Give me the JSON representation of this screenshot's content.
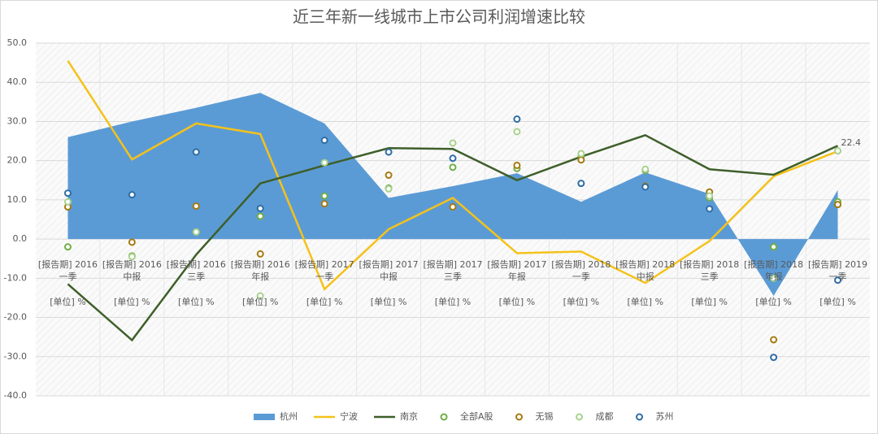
{
  "chart_data": {
    "type": "combo",
    "title": "近三年新一线城市上市公司利润增速比较",
    "categories": [
      [
        "[报告期] 2016",
        "一季"
      ],
      [
        "[报告期] 2016",
        "中报"
      ],
      [
        "[报告期] 2016",
        "三季"
      ],
      [
        "[报告期] 2016",
        "年报"
      ],
      [
        "[报告期] 2017",
        "一季"
      ],
      [
        "[报告期] 2017",
        "中报"
      ],
      [
        "[报告期] 2017",
        "三季"
      ],
      [
        "[报告期] 2017",
        "年报"
      ],
      [
        "[报告期] 2018",
        "一季"
      ],
      [
        "[报告期] 2018",
        "中报"
      ],
      [
        "[报告期] 2018",
        "三季"
      ],
      [
        "[报告期] 2018",
        "年报"
      ],
      [
        "[报告期] 2019",
        "一季"
      ]
    ],
    "x_unit_label": "[单位] %",
    "ylim": [
      -40,
      50
    ],
    "yticks": [
      {
        "value": -40,
        "label": "-40.0"
      },
      {
        "value": -30,
        "label": "-30.0"
      },
      {
        "value": -20,
        "label": "-20.0"
      },
      {
        "value": -10,
        "label": "-10.0"
      },
      {
        "value": 0,
        "label": "0.0"
      },
      {
        "value": 10,
        "label": "10.0"
      },
      {
        "value": 20,
        "label": "20.0"
      },
      {
        "value": 30,
        "label": "30.0"
      },
      {
        "value": 40,
        "label": "40.0"
      },
      {
        "value": 50,
        "label": "50.0"
      }
    ],
    "grid": true,
    "legend": "bottom",
    "series": [
      {
        "name": "杭州",
        "kind": "area",
        "color": "#5b9bd5",
        "values": [
          26,
          30,
          33.5,
          37.3,
          29.5,
          10.5,
          13.5,
          16.8,
          9.5,
          17,
          11.5,
          -14.5,
          12.5
        ]
      },
      {
        "name": "宁波",
        "kind": "line",
        "color": "#f4c21b",
        "values": [
          45.5,
          20.3,
          29.5,
          26.8,
          -12.8,
          2.5,
          10.5,
          -3.6,
          -3.2,
          -11.2,
          -0.5,
          16,
          22.4
        ],
        "value_labels": [
          null,
          null,
          null,
          null,
          null,
          null,
          null,
          null,
          null,
          null,
          null,
          null,
          "22.4"
        ]
      },
      {
        "name": "南京",
        "kind": "line",
        "color": "#3e5f2a",
        "values": [
          -11.5,
          -25.8,
          -4,
          14.2,
          18.8,
          23.2,
          23,
          15,
          21,
          26.5,
          17.8,
          16.4,
          23.8
        ]
      },
      {
        "name": "全部A股",
        "kind": "scatter",
        "color": "#70ad47",
        "values": [
          -2,
          -4.3,
          1.8,
          5.8,
          11,
          13,
          18.3,
          18,
          21,
          17.5,
          10.5,
          -2,
          9.5
        ]
      },
      {
        "name": "无锡",
        "kind": "scatter",
        "color": "#a57a10",
        "values": [
          8.2,
          -0.8,
          8.4,
          -3.8,
          9,
          16.3,
          8.2,
          18.8,
          20.2,
          13.5,
          12,
          -25.7,
          8.8
        ]
      },
      {
        "name": "成都",
        "kind": "scatter",
        "color": "#a9d18e",
        "values": [
          9.5,
          -4.5,
          1.8,
          -14.5,
          19.5,
          12.8,
          24.5,
          27.4,
          21.8,
          17.8,
          11,
          -10,
          22.5
        ]
      },
      {
        "name": "苏州",
        "kind": "scatter",
        "color": "#2e6da4",
        "values": [
          11.7,
          11.3,
          22.2,
          7.8,
          25.2,
          22.2,
          20.6,
          30.6,
          14.2,
          13.3,
          7.7,
          -30.2,
          -10.5
        ]
      }
    ]
  }
}
